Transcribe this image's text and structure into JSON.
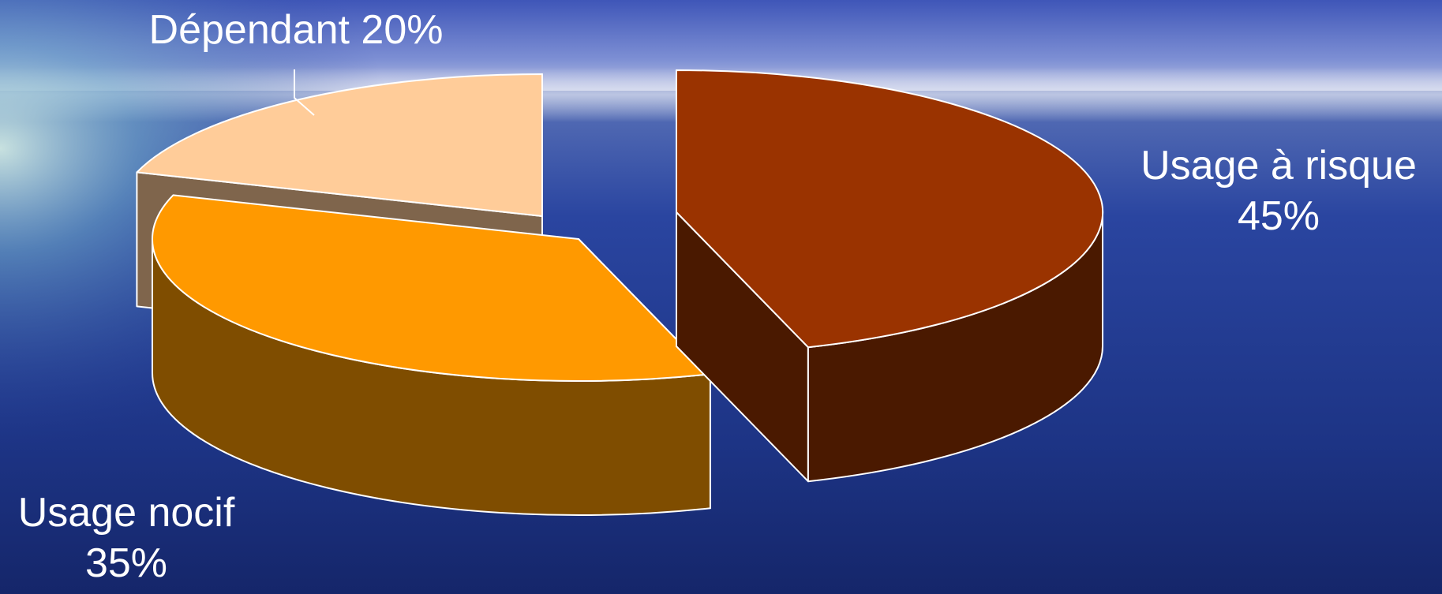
{
  "chart_data": {
    "type": "pie",
    "style": "3d-exploded",
    "slices": [
      {
        "name": "Usage à risque",
        "value": 45,
        "label_line1": "Usage à risque",
        "label_line2": "45%",
        "color": "#9a3300",
        "side_color": "#4a1900"
      },
      {
        "name": "Usage nocif",
        "value": 35,
        "label_line1": "Usage nocif",
        "label_line2": "35%",
        "color": "#ff9900",
        "side_color": "#7f4d00"
      },
      {
        "name": "Dépendant",
        "value": 20,
        "label_line1": "Dépendant 20%",
        "label_line2": "",
        "color": "#ffcc99",
        "side_color": "#7f654c"
      }
    ],
    "legend": "none",
    "grid": false,
    "title": ""
  },
  "colors": {
    "outline": "#ffffff",
    "label_text": "#ffffff",
    "sky_top": "#2c3f9e",
    "sea": "#1c3078"
  }
}
